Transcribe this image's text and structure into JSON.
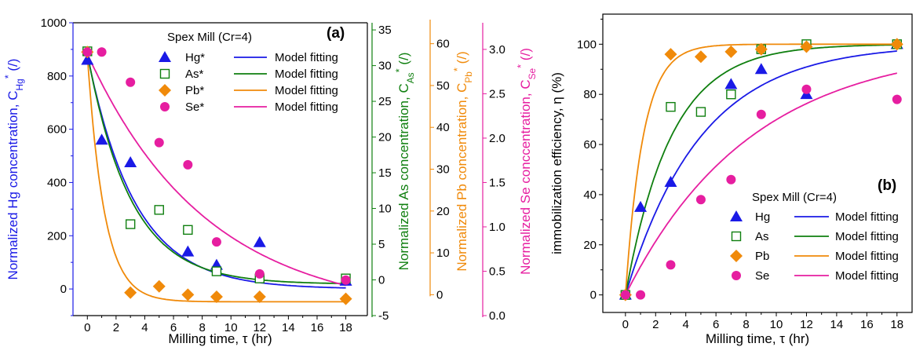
{
  "colors": {
    "hg": "#1a1ae6",
    "as": "#0f7f0f",
    "pb": "#f08a0a",
    "se": "#e61ea0",
    "axis": "#000000"
  },
  "chart_data": [
    {
      "type": "scatter",
      "panel_label": "(a)",
      "legend_title": "Spex Mill (Cr=4)",
      "legend_placement": "top-center",
      "grid": false,
      "xlabel": "Milling time, τ (hr)",
      "x_ticks": [
        "0",
        "2",
        "4",
        "6",
        "8",
        "10",
        "12",
        "14",
        "16",
        "18"
      ],
      "xlim": [
        -1,
        19.5
      ],
      "axes": [
        {
          "id": "hg",
          "side": "left",
          "label_main": "Normalized Hg concentration, C",
          "label_sub": "Hg",
          "label_sup": "*",
          "label_tail": " (/)",
          "ylim": [
            -100,
            1000
          ],
          "ticks": [
            "0",
            "200",
            "400",
            "600",
            "800",
            "1000"
          ],
          "minor_ticks": [
            -100,
            100,
            300,
            500,
            700,
            900
          ]
        },
        {
          "id": "as",
          "side": "right",
          "label_main": "Normalized As concentration, C",
          "label_sub": "As",
          "label_sup": "*",
          "label_tail": " (/)",
          "ylim": [
            -5,
            36
          ],
          "ticks": [
            "-5",
            "0",
            "5",
            "10",
            "15",
            "20",
            "25",
            "30",
            "35"
          ]
        },
        {
          "id": "pb",
          "side": "right",
          "label_main": "Normalized Pb concentration, C",
          "label_sub": "Pb",
          "label_sup": "*",
          "label_tail": " (/)",
          "ylim": [
            -5,
            65
          ],
          "ticks": [
            "0",
            "10",
            "20",
            "30",
            "40",
            "50",
            "60"
          ]
        },
        {
          "id": "se",
          "side": "right",
          "label_main": "Normalized Se conccentration, C",
          "label_sub": "Se",
          "label_sup": "*",
          "label_tail": " (/)",
          "ylim": [
            0,
            3.3
          ],
          "ticks": [
            "0.0",
            "0.5",
            "1.0",
            "1.5",
            "2.0",
            "2.5",
            "3.0"
          ]
        }
      ],
      "series": [
        {
          "id": "hg",
          "name": "Hg*",
          "axis": "hg",
          "marker": "triangle",
          "x": [
            0,
            1,
            3,
            7,
            9,
            12,
            18
          ],
          "y": [
            860,
            560,
            475,
            140,
            90,
            175,
            30
          ],
          "fit_name": "Model fitting",
          "fit": {
            "a": 880,
            "k": 0.3,
            "c": 0
          }
        },
        {
          "id": "as",
          "name": "As*",
          "axis": "as",
          "marker": "square-open",
          "x": [
            0,
            3,
            5,
            7,
            9,
            12,
            18
          ],
          "y": [
            32,
            7.8,
            9.8,
            7,
            1.2,
            0.2,
            0.2
          ],
          "fit_name": "Model fitting",
          "fit": {
            "a": 32.3,
            "k": 0.33,
            "c": -0.6
          }
        },
        {
          "id": "pb",
          "name": "Pb*",
          "axis": "pb",
          "marker": "diamond",
          "x": [
            0,
            3,
            5,
            7,
            9,
            12,
            18
          ],
          "y": [
            58,
            0.5,
            2,
            0,
            -0.5,
            -0.5,
            -1
          ],
          "fit_name": "Model fitting",
          "fit": {
            "a": 59,
            "k": 0.85,
            "c": -1.7
          }
        },
        {
          "id": "se",
          "name": "Se*",
          "axis": "se",
          "marker": "circle",
          "x": [
            0,
            1,
            3,
            5,
            7,
            9,
            12,
            18
          ],
          "y": [
            2.97,
            2.97,
            2.63,
            1.95,
            1.7,
            0.83,
            0.47,
            0.4
          ],
          "fit_name": "Model fitting",
          "fit": {
            "a": 2.95,
            "k": 0.12,
            "c": 0
          }
        }
      ]
    },
    {
      "type": "scatter",
      "panel_label": "(b)",
      "legend_title": "Spex Mill (Cr=4)",
      "legend_placement": "bottom-right",
      "grid": false,
      "xlabel": "Milling time, τ (hr)",
      "ylabel": "immobilization efficiency, η (%)",
      "x_ticks": [
        "0",
        "2",
        "4",
        "6",
        "8",
        "10",
        "12",
        "14",
        "16",
        "18"
      ],
      "xlim": [
        -1.5,
        19
      ],
      "y_ticks": [
        "0",
        "20",
        "40",
        "60",
        "80",
        "100"
      ],
      "ylim": [
        -7,
        112
      ],
      "series": [
        {
          "id": "hg",
          "name": "Hg",
          "marker": "triangle",
          "x": [
            0,
            1,
            3,
            7,
            9,
            12,
            18
          ],
          "y": [
            0,
            35,
            45,
            84,
            90,
            80,
            100
          ],
          "fit_name": "Model fitting",
          "fit": {
            "a": 100,
            "k": 0.2
          }
        },
        {
          "id": "as",
          "name": "As",
          "marker": "square-open",
          "x": [
            0,
            3,
            5,
            7,
            9,
            12,
            18
          ],
          "y": [
            0,
            75,
            73,
            80,
            98,
            100,
            100
          ],
          "fit_name": "Model fitting",
          "fit": {
            "a": 100,
            "k": 0.33
          }
        },
        {
          "id": "pb",
          "name": "Pb",
          "marker": "diamond",
          "x": [
            0,
            3,
            5,
            7,
            9,
            12,
            18
          ],
          "y": [
            0,
            96,
            95,
            97,
            98,
            99,
            100
          ],
          "fit_name": "Model fitting",
          "fit": {
            "a": 100,
            "k": 0.85
          }
        },
        {
          "id": "se",
          "name": "Se",
          "marker": "circle",
          "x": [
            0,
            1,
            3,
            5,
            7,
            9,
            12,
            18
          ],
          "y": [
            0,
            0,
            12,
            38,
            46,
            72,
            82,
            78
          ],
          "fit_name": "Model fitting",
          "fit": {
            "a": 100,
            "k": 0.12
          }
        }
      ]
    }
  ]
}
